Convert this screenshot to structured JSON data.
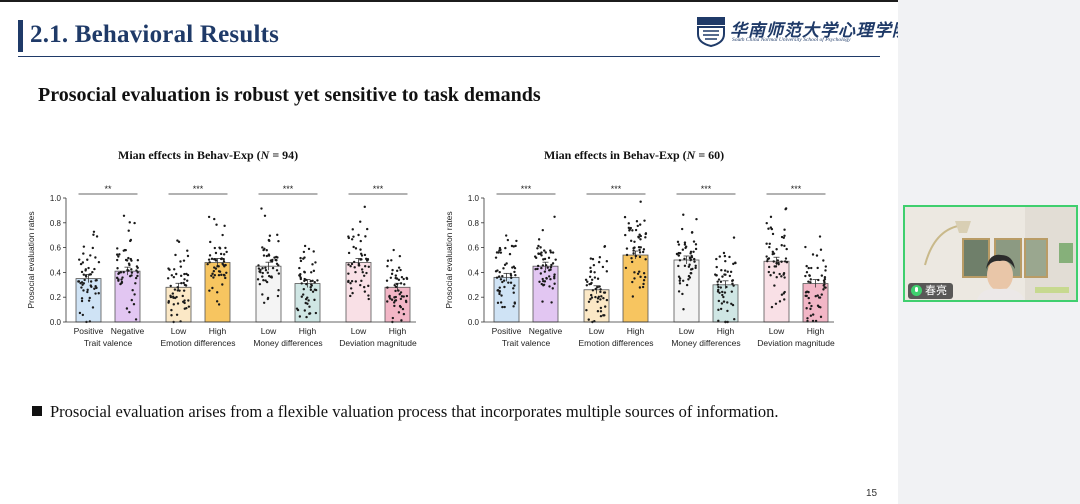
{
  "slide": {
    "section_title": "2.1. Behavioral Results",
    "logo": {
      "cn": "华南师范大学心理学院",
      "en": "South China Normal University School of Psychology"
    },
    "headline": "Prosocial evaluation is robust yet sensitive to task demands",
    "bullet": "Prosocial evaluation arises from a flexible valuation process that incorporates multiple sources of information.",
    "page_number": "15"
  },
  "video": {
    "participant_name": "春亮"
  },
  "chart_data": [
    {
      "type": "bar",
      "title_prefix": "Mian effects in Behav-Exp (",
      "title_n": "N",
      "title_suffix": " = 94)",
      "ylabel": "Prosocial evaluation rates",
      "ylim": [
        0,
        1.0
      ],
      "yticks": [
        "0.0",
        "0.2",
        "0.4",
        "0.6",
        "0.8",
        "1.0"
      ],
      "groups": [
        {
          "label": "Trait valence",
          "significance": "**",
          "bars": [
            {
              "label": "Positive",
              "value": 0.35,
              "color": "#cfe3f5"
            },
            {
              "label": "Negative",
              "value": 0.41,
              "color": "#e2c6f2"
            }
          ]
        },
        {
          "label": "Emotion differences",
          "significance": "***",
          "bars": [
            {
              "label": "Low",
              "value": 0.28,
              "color": "#fbe8c6"
            },
            {
              "label": "High",
              "value": 0.48,
              "color": "#f7c560"
            }
          ]
        },
        {
          "label": "Money differences",
          "significance": "***",
          "bars": [
            {
              "label": "Low",
              "value": 0.45,
              "color": "#f4f4f4"
            },
            {
              "label": "High",
              "value": 0.31,
              "color": "#cfe6e4"
            }
          ]
        },
        {
          "label": "Deviation magnitude",
          "significance": "***",
          "bars": [
            {
              "label": "Low",
              "value": 0.48,
              "color": "#f9e0e6"
            },
            {
              "label": "High",
              "value": 0.28,
              "color": "#f2b6c6"
            }
          ]
        }
      ]
    },
    {
      "type": "bar",
      "title_prefix": "Mian effects in Behav-Exp (",
      "title_n": "N",
      "title_suffix": " = 60)",
      "ylabel": "Prosocial evaluation rates",
      "ylim": [
        0,
        1.0
      ],
      "yticks": [
        "0.0",
        "0.2",
        "0.4",
        "0.6",
        "0.8",
        "1.0"
      ],
      "groups": [
        {
          "label": "Trait valence",
          "significance": "***",
          "bars": [
            {
              "label": "Positive",
              "value": 0.36,
              "color": "#cfe3f5"
            },
            {
              "label": "Negative",
              "value": 0.45,
              "color": "#e2c6f2"
            }
          ]
        },
        {
          "label": "Emotion differences",
          "significance": "***",
          "bars": [
            {
              "label": "Low",
              "value": 0.26,
              "color": "#fbe8c6"
            },
            {
              "label": "High",
              "value": 0.54,
              "color": "#f7c560"
            }
          ]
        },
        {
          "label": "Money differences",
          "significance": "***",
          "bars": [
            {
              "label": "Low",
              "value": 0.5,
              "color": "#f4f4f4"
            },
            {
              "label": "High",
              "value": 0.3,
              "color": "#cfe6e4"
            }
          ]
        },
        {
          "label": "Deviation magnitude",
          "significance": "***",
          "bars": [
            {
              "label": "Low",
              "value": 0.49,
              "color": "#f9e0e6"
            },
            {
              "label": "High",
              "value": 0.31,
              "color": "#f2b6c6"
            }
          ]
        }
      ]
    }
  ]
}
